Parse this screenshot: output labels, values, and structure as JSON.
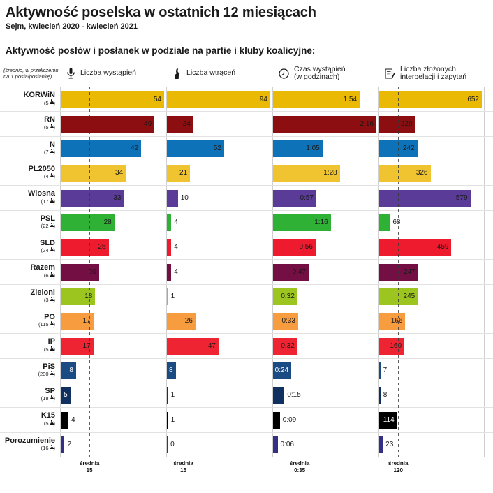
{
  "header": {
    "title": "Aktywność poselska w ostatnich 12 miesiącach",
    "subtitle": "Sejm, kwiecień 2020 - kwiecień 2021",
    "section_heading": "Aktywność posłów i posłanek w podziale na partie i kluby koalicyjne:",
    "note_line1": "(średnio, w przeliczeniu",
    "note_line2": "na 1 posła/posłankę)"
  },
  "chart_data": {
    "type": "bar",
    "orientation": "horizontal",
    "note": "(średnio, w przeliczeniu na 1 posła/posłankę)",
    "average_word": "średnia",
    "columns": [
      {
        "label": "Liczba wystąpień",
        "label_line2": "",
        "icon": "microphone-icon",
        "max": 54,
        "average": 15,
        "average_display": "15"
      },
      {
        "label": "Liczba wtrąceń",
        "label_line2": "",
        "icon": "raised-hand-icon",
        "max": 94,
        "average": 15,
        "average_display": "15"
      },
      {
        "label": "Czas wystąpień",
        "label_line2": "(w godzinach)",
        "icon": "clock-icon",
        "max": 136,
        "average": 35,
        "average_display": "0:35"
      },
      {
        "label": "Liczba złożonych",
        "label_line2": "interpelacji i zapytań",
        "icon": "document-icon",
        "max": 652,
        "average": 120,
        "average_display": "120"
      }
    ],
    "parties": [
      {
        "name": "KORWiN",
        "members": 5,
        "color": "#EAB904",
        "cells": [
          {
            "display": "54",
            "num": 54,
            "label_pos": "in"
          },
          {
            "display": "94",
            "num": 94,
            "label_pos": "in"
          },
          {
            "display": "1:54",
            "num": 114,
            "label_pos": "in"
          },
          {
            "display": "652",
            "num": 652,
            "label_pos": "in"
          }
        ]
      },
      {
        "name": "RN",
        "members": 5,
        "color": "#8D0E10",
        "cells": [
          {
            "display": "49",
            "num": 49,
            "label_pos": "in"
          },
          {
            "display": "24",
            "num": 24,
            "label_pos": "in"
          },
          {
            "display": "2:16",
            "num": 136,
            "label_pos": "in"
          },
          {
            "display": "229",
            "num": 229,
            "label_pos": "in"
          }
        ]
      },
      {
        "name": "N",
        "members": 7,
        "color": "#0E72B8",
        "cells": [
          {
            "display": "42",
            "num": 42,
            "label_pos": "in"
          },
          {
            "display": "52",
            "num": 52,
            "label_pos": "in"
          },
          {
            "display": "1:05",
            "num": 65,
            "label_pos": "in"
          },
          {
            "display": "242",
            "num": 242,
            "label_pos": "in"
          }
        ]
      },
      {
        "name": "PL2050",
        "members": 4,
        "color": "#F0C330",
        "cells": [
          {
            "display": "34",
            "num": 34,
            "label_pos": "in"
          },
          {
            "display": "21",
            "num": 21,
            "label_pos": "in"
          },
          {
            "display": "1:28",
            "num": 88,
            "label_pos": "in"
          },
          {
            "display": "326",
            "num": 326,
            "label_pos": "in"
          }
        ]
      },
      {
        "name": "Wiosna",
        "members": 17,
        "color": "#5A3B98",
        "cells": [
          {
            "display": "33",
            "num": 33,
            "label_pos": "in"
          },
          {
            "display": "10",
            "num": 10,
            "label_pos": "out"
          },
          {
            "display": "0:57",
            "num": 57,
            "label_pos": "in"
          },
          {
            "display": "579",
            "num": 579,
            "label_pos": "in"
          }
        ]
      },
      {
        "name": "PSL",
        "members": 22,
        "color": "#2EB135",
        "cells": [
          {
            "display": "28",
            "num": 28,
            "label_pos": "in"
          },
          {
            "display": "4",
            "num": 4,
            "label_pos": "out"
          },
          {
            "display": "1:16",
            "num": 76,
            "label_pos": "in"
          },
          {
            "display": "68",
            "num": 68,
            "label_pos": "out"
          }
        ]
      },
      {
        "name": "SLD",
        "members": 24,
        "color": "#EE1B2F",
        "cells": [
          {
            "display": "25",
            "num": 25,
            "label_pos": "in"
          },
          {
            "display": "4",
            "num": 4,
            "label_pos": "out"
          },
          {
            "display": "0:56",
            "num": 56,
            "label_pos": "in"
          },
          {
            "display": "459",
            "num": 459,
            "label_pos": "in"
          }
        ]
      },
      {
        "name": "Razem",
        "members": 6,
        "color": "#740F43",
        "cells": [
          {
            "display": "20",
            "num": 20,
            "label_pos": "in"
          },
          {
            "display": "4",
            "num": 4,
            "label_pos": "out"
          },
          {
            "display": "0:47",
            "num": 47,
            "label_pos": "in"
          },
          {
            "display": "247",
            "num": 247,
            "label_pos": "in"
          }
        ]
      },
      {
        "name": "Zieloni",
        "members": 3,
        "color": "#9DC51F",
        "cells": [
          {
            "display": "18",
            "num": 18,
            "label_pos": "in"
          },
          {
            "display": "1",
            "num": 1,
            "label_pos": "out"
          },
          {
            "display": "0:32",
            "num": 32,
            "label_pos": "in"
          },
          {
            "display": "245",
            "num": 245,
            "label_pos": "in"
          }
        ]
      },
      {
        "name": "PO",
        "members": 115,
        "color": "#F89C40",
        "cells": [
          {
            "display": "17",
            "num": 17,
            "label_pos": "in"
          },
          {
            "display": "26",
            "num": 26,
            "label_pos": "in"
          },
          {
            "display": "0:33",
            "num": 33,
            "label_pos": "in"
          },
          {
            "display": "166",
            "num": 166,
            "label_pos": "in"
          }
        ]
      },
      {
        "name": "IP",
        "members": 5,
        "color": "#EF2433",
        "cells": [
          {
            "display": "17",
            "num": 17,
            "label_pos": "in"
          },
          {
            "display": "47",
            "num": 47,
            "label_pos": "in"
          },
          {
            "display": "0:32",
            "num": 32,
            "label_pos": "in"
          },
          {
            "display": "160",
            "num": 160,
            "label_pos": "in"
          }
        ]
      },
      {
        "name": "PiS",
        "members": 200,
        "color": "#1A4B82",
        "cells": [
          {
            "display": "8",
            "num": 8,
            "label_pos": "in",
            "white": true
          },
          {
            "display": "8",
            "num": 8,
            "label_pos": "in",
            "white": true
          },
          {
            "display": "0:24",
            "num": 24,
            "label_pos": "in",
            "white": true
          },
          {
            "display": "7",
            "num": 7,
            "label_pos": "out"
          }
        ]
      },
      {
        "name": "SP",
        "members": 18,
        "color": "#10305F",
        "cells": [
          {
            "display": "5",
            "num": 5,
            "label_pos": "in",
            "white": true
          },
          {
            "display": "1",
            "num": 1,
            "label_pos": "out"
          },
          {
            "display": "0:15",
            "num": 15,
            "label_pos": "out"
          },
          {
            "display": "8",
            "num": 8,
            "label_pos": "out"
          }
        ]
      },
      {
        "name": "K15",
        "members": 5,
        "color": "#000000",
        "cells": [
          {
            "display": "4",
            "num": 4,
            "label_pos": "out"
          },
          {
            "display": "1",
            "num": 1,
            "label_pos": "out"
          },
          {
            "display": "0:09",
            "num": 9,
            "label_pos": "out"
          },
          {
            "display": "114",
            "num": 114,
            "label_pos": "in",
            "white": true
          }
        ]
      },
      {
        "name": "Porozumienie",
        "members": 16,
        "color": "#343085",
        "cells": [
          {
            "display": "2",
            "num": 2,
            "label_pos": "out"
          },
          {
            "display": "0",
            "num": 0,
            "label_pos": "out"
          },
          {
            "display": "0:06",
            "num": 6,
            "label_pos": "out"
          },
          {
            "display": "23",
            "num": 23,
            "label_pos": "out"
          }
        ]
      }
    ]
  }
}
